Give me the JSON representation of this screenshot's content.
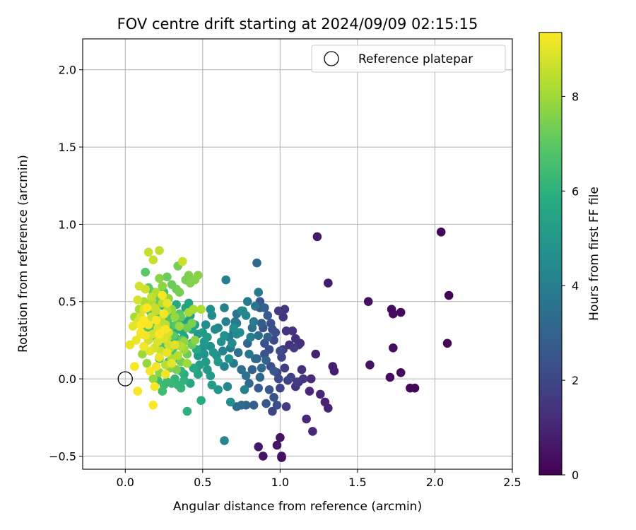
{
  "chart_data": {
    "type": "scatter",
    "title": "FOV centre drift starting at 2024/09/09 02:15:15",
    "xlabel": "Angular distance from reference (arcmin)",
    "ylabel": "Rotation from reference (arcmin)",
    "xlim": [
      -0.275,
      2.5
    ],
    "ylim": [
      -0.585,
      2.2
    ],
    "xticks": [
      0.0,
      0.5,
      1.0,
      1.5,
      2.0,
      2.5
    ],
    "xtick_labels": [
      "0.0",
      "0.5",
      "1.0",
      "1.5",
      "2.0",
      "2.5"
    ],
    "yticks": [
      -0.5,
      0.0,
      0.5,
      1.0,
      1.5,
      2.0
    ],
    "ytick_labels": [
      "−0.5",
      "0.0",
      "0.5",
      "1.0",
      "1.5",
      "2.0"
    ],
    "grid": true,
    "legend": {
      "position": "top-right",
      "entries": [
        "Reference platepar"
      ]
    },
    "colorbar": {
      "label": "Hours from first FF file",
      "colormap": "viridis",
      "range": [
        0,
        9.35
      ],
      "ticks": [
        0,
        2,
        4,
        6,
        8
      ],
      "tick_labels": [
        "0",
        "2",
        "4",
        "6",
        "8"
      ]
    },
    "reference_point": {
      "x": 0.0,
      "y": 0.0,
      "name": "Reference platepar"
    },
    "points": [
      [
        2.04,
        0.95,
        0.1
      ],
      [
        2.09,
        0.54,
        0.1
      ],
      [
        2.08,
        0.23,
        0.1
      ],
      [
        1.87,
        -0.06,
        0.15
      ],
      [
        1.84,
        -0.06,
        0.15
      ],
      [
        1.78,
        0.04,
        0.25
      ],
      [
        1.71,
        0.01,
        0.3
      ],
      [
        1.73,
        0.2,
        0.35
      ],
      [
        1.78,
        0.43,
        0.3
      ],
      [
        1.73,
        0.42,
        0.3
      ],
      [
        1.72,
        0.45,
        0.3
      ],
      [
        1.57,
        0.5,
        0.4
      ],
      [
        1.58,
        0.09,
        0.45
      ],
      [
        1.24,
        0.92,
        0.7
      ],
      [
        1.31,
        0.62,
        0.75
      ],
      [
        1.35,
        0.05,
        0.8
      ],
      [
        1.34,
        0.08,
        0.85
      ],
      [
        1.31,
        -0.19,
        0.9
      ],
      [
        1.23,
        0.16,
        0.9
      ],
      [
        1.29,
        -0.15,
        0.95
      ],
      [
        1.26,
        -0.1,
        1.0
      ],
      [
        1.21,
        -0.34,
        1.05
      ],
      [
        1.19,
        -0.08,
        1.1
      ],
      [
        1.17,
        -0.26,
        1.1
      ],
      [
        1.2,
        0.0,
        1.15
      ],
      [
        1.13,
        0.23,
        1.2
      ],
      [
        1.12,
        -0.02,
        1.25
      ],
      [
        1.14,
        0.06,
        1.3
      ],
      [
        1.1,
        0.26,
        1.3
      ],
      [
        1.1,
        -0.05,
        1.35
      ],
      [
        1.12,
        0.22,
        1.35
      ],
      [
        1.04,
        0.31,
        1.4
      ],
      [
        1.03,
        0.45,
        1.5
      ],
      [
        1.02,
        0.4,
        1.55
      ],
      [
        0.99,
        0.44,
        1.6
      ],
      [
        1.02,
        0.19,
        1.6
      ],
      [
        1.01,
        -0.51,
        0.4
      ],
      [
        1.01,
        -0.5,
        0.45
      ],
      [
        1.0,
        -0.38,
        0.5
      ],
      [
        0.98,
        -0.43,
        0.55
      ],
      [
        0.89,
        -0.5,
        0.5
      ],
      [
        0.86,
        -0.44,
        0.6
      ],
      [
        1.04,
        -0.18,
        1.7
      ],
      [
        1.03,
        0.07,
        1.75
      ],
      [
        1.0,
        -0.06,
        1.9
      ],
      [
        0.98,
        0.04,
        2.0
      ],
      [
        0.95,
        -0.21,
        2.0
      ],
      [
        0.96,
        0.25,
        2.1
      ],
      [
        0.94,
        0.08,
        2.2
      ],
      [
        0.93,
        0.19,
        2.25
      ],
      [
        0.97,
        0.3,
        2.3
      ],
      [
        0.94,
        0.36,
        2.3
      ],
      [
        0.9,
        0.23,
        2.35
      ],
      [
        0.9,
        0.16,
        2.4
      ],
      [
        0.89,
        0.33,
        2.45
      ],
      [
        0.87,
        0.46,
        2.5
      ],
      [
        0.87,
        0.5,
        2.55
      ],
      [
        0.91,
        -0.16,
        2.6
      ],
      [
        0.86,
        -0.06,
        2.7
      ],
      [
        0.83,
        -0.17,
        2.8
      ],
      [
        0.85,
        0.13,
        2.85
      ],
      [
        0.82,
        0.06,
        2.9
      ],
      [
        0.78,
        -0.17,
        3.0
      ],
      [
        0.8,
        -0.03,
        3.1
      ],
      [
        0.79,
        0.23,
        3.15
      ],
      [
        0.75,
        -0.17,
        3.2
      ],
      [
        0.72,
        -0.18,
        3.3
      ],
      [
        0.75,
        0.06,
        3.4
      ],
      [
        0.73,
        0.17,
        3.5
      ],
      [
        0.72,
        0.42,
        3.55
      ],
      [
        0.71,
        0.37,
        3.6
      ],
      [
        0.7,
        0.31,
        3.7
      ],
      [
        0.68,
        0.2,
        3.8
      ],
      [
        0.7,
        0.1,
        3.85
      ],
      [
        0.72,
        0.36,
        3.9
      ],
      [
        0.67,
        0.27,
        4.0
      ],
      [
        0.65,
        0.37,
        4.05
      ],
      [
        0.64,
        0.46,
        4.1
      ],
      [
        0.63,
        0.18,
        4.15
      ],
      [
        0.64,
        0.08,
        4.2
      ],
      [
        0.66,
        -0.05,
        4.3
      ],
      [
        0.6,
        0.33,
        4.35
      ],
      [
        0.58,
        0.32,
        4.4
      ],
      [
        0.56,
        0.41,
        4.5
      ],
      [
        0.55,
        0.45,
        4.55
      ],
      [
        0.52,
        0.35,
        4.6
      ],
      [
        0.55,
        0.21,
        4.7
      ],
      [
        0.59,
        0.15,
        4.75
      ],
      [
        0.51,
        0.16,
        4.8
      ],
      [
        0.5,
        0.2,
        4.85
      ],
      [
        0.47,
        0.15,
        4.9
      ],
      [
        0.47,
        0.29,
        4.95
      ],
      [
        0.51,
        0.24,
        5.0
      ],
      [
        0.53,
        0.06,
        5.05
      ],
      [
        0.55,
        0.02,
        5.1
      ],
      [
        0.56,
        -0.04,
        5.15
      ],
      [
        0.48,
        0.09,
        5.2
      ],
      [
        0.46,
        0.06,
        5.25
      ],
      [
        0.43,
        0.23,
        5.3
      ],
      [
        0.42,
        0.41,
        5.35
      ],
      [
        0.4,
        0.37,
        5.4
      ],
      [
        0.41,
        0.49,
        5.45
      ],
      [
        0.38,
        0.27,
        5.5
      ],
      [
        0.37,
        0.31,
        5.55
      ],
      [
        0.35,
        0.37,
        5.6
      ],
      [
        0.33,
        0.48,
        5.65
      ],
      [
        0.32,
        0.31,
        5.7
      ],
      [
        0.3,
        0.25,
        5.75
      ],
      [
        0.28,
        0.42,
        5.8
      ],
      [
        0.27,
        0.34,
        5.85
      ],
      [
        0.26,
        0.3,
        5.9
      ],
      [
        0.25,
        0.47,
        5.95
      ],
      [
        0.24,
        0.52,
        6.0
      ],
      [
        0.38,
        -0.01,
        6.05
      ],
      [
        0.36,
        0.05,
        6.1
      ],
      [
        0.34,
        -0.04,
        6.15
      ],
      [
        0.32,
        0.0,
        6.2
      ],
      [
        0.3,
        -0.03,
        6.25
      ],
      [
        0.27,
        -0.02,
        6.3
      ],
      [
        0.25,
        -0.04,
        6.35
      ],
      [
        0.21,
        -0.01,
        6.4
      ],
      [
        0.24,
        -0.08,
        6.45
      ],
      [
        0.28,
        0.11,
        6.5
      ],
      [
        0.3,
        0.18,
        6.55
      ],
      [
        0.22,
        0.13,
        6.6
      ],
      [
        0.23,
        0.21,
        6.65
      ],
      [
        0.2,
        0.27,
        6.7
      ],
      [
        0.18,
        0.33,
        6.75
      ],
      [
        0.17,
        0.42,
        6.8
      ],
      [
        0.16,
        0.44,
        6.85
      ],
      [
        0.14,
        0.33,
        6.9
      ],
      [
        0.13,
        0.69,
        6.95
      ],
      [
        0.15,
        0.59,
        7.0
      ],
      [
        0.18,
        0.56,
        7.05
      ],
      [
        0.21,
        0.48,
        7.1
      ],
      [
        0.22,
        0.53,
        7.15
      ],
      [
        0.27,
        0.66,
        7.2
      ],
      [
        0.3,
        0.61,
        7.25
      ],
      [
        0.33,
        0.58,
        7.3
      ],
      [
        0.35,
        0.56,
        7.35
      ],
      [
        0.34,
        0.73,
        7.4
      ],
      [
        0.39,
        0.64,
        7.45
      ],
      [
        0.41,
        0.67,
        7.5
      ],
      [
        0.42,
        0.62,
        7.55
      ],
      [
        0.45,
        0.64,
        7.6
      ],
      [
        0.47,
        0.67,
        7.65
      ],
      [
        0.22,
        0.65,
        7.7
      ],
      [
        0.24,
        0.6,
        7.75
      ],
      [
        0.28,
        0.52,
        7.8
      ],
      [
        0.3,
        0.45,
        7.85
      ],
      [
        0.32,
        0.4,
        7.9
      ],
      [
        0.35,
        0.34,
        7.95
      ],
      [
        0.38,
        0.19,
        8.0
      ],
      [
        0.4,
        0.1,
        8.05
      ],
      [
        0.41,
        0.43,
        8.1
      ],
      [
        0.44,
        0.45,
        8.15
      ],
      [
        0.49,
        0.45,
        8.2
      ],
      [
        0.36,
        0.21,
        8.25
      ],
      [
        0.34,
        0.15,
        8.3
      ],
      [
        0.29,
        0.2,
        8.35
      ],
      [
        0.27,
        0.26,
        8.4
      ],
      [
        0.24,
        0.36,
        8.45
      ],
      [
        0.22,
        0.83,
        8.5
      ],
      [
        0.15,
        0.82,
        8.55
      ],
      [
        0.18,
        0.77,
        8.6
      ],
      [
        0.37,
        0.76,
        8.65
      ],
      [
        0.13,
        0.58,
        8.7
      ],
      [
        0.09,
        0.6,
        8.75
      ],
      [
        0.08,
        0.51,
        8.8
      ],
      [
        0.08,
        0.37,
        8.85
      ],
      [
        0.1,
        0.4,
        8.9
      ],
      [
        0.12,
        0.45,
        8.95
      ],
      [
        0.05,
        0.34,
        9.0
      ],
      [
        0.03,
        0.22,
        9.05
      ],
      [
        0.07,
        0.25,
        9.1
      ],
      [
        0.1,
        0.29,
        9.15
      ],
      [
        0.12,
        0.21,
        9.2
      ],
      [
        0.08,
        -0.08,
        9.25
      ],
      [
        0.06,
        0.08,
        9.3
      ],
      [
        0.18,
        -0.17,
        9.35
      ],
      [
        0.19,
        -0.05,
        9.3
      ],
      [
        0.16,
        0.05,
        9.25
      ],
      [
        0.2,
        0.08,
        9.2
      ],
      [
        0.26,
        0.03,
        9.15
      ],
      [
        0.22,
        0.14,
        9.1
      ],
      [
        0.27,
        0.17,
        9.05
      ],
      [
        0.3,
        0.1,
        9.0
      ],
      [
        0.32,
        0.22,
        8.95
      ],
      [
        0.25,
        0.26,
        8.9
      ],
      [
        0.28,
        0.3,
        8.85
      ],
      [
        0.21,
        0.33,
        8.8
      ],
      [
        0.18,
        0.29,
        8.75
      ],
      [
        0.15,
        0.25,
        8.7
      ],
      [
        0.14,
        0.36,
        8.65
      ],
      [
        0.17,
        0.4,
        8.6
      ],
      [
        0.2,
        0.44,
        8.55
      ],
      [
        0.23,
        0.38,
        8.5
      ],
      [
        0.26,
        0.35,
        8.45
      ],
      [
        0.24,
        0.49,
        8.4
      ],
      [
        0.27,
        0.44,
        8.35
      ],
      [
        0.2,
        0.56,
        8.3
      ],
      [
        0.17,
        0.5,
        8.25
      ],
      [
        0.12,
        0.5,
        8.2
      ],
      [
        0.09,
        0.45,
        8.15
      ],
      [
        0.06,
        0.4,
        8.1
      ],
      [
        0.11,
        0.16,
        8.0
      ],
      [
        0.14,
        0.1,
        7.9
      ],
      [
        0.18,
        0.0,
        7.85
      ],
      [
        0.22,
        0.04,
        7.75
      ],
      [
        0.29,
        0.07,
        7.6
      ],
      [
        0.33,
        0.06,
        7.5
      ],
      [
        0.36,
        0.11,
        7.4
      ],
      [
        0.4,
        0.16,
        7.3
      ],
      [
        0.43,
        0.22,
        7.2
      ],
      [
        0.37,
        0.25,
        7.1
      ],
      [
        0.31,
        0.28,
        7.0
      ],
      [
        0.35,
        0.42,
        6.9
      ],
      [
        0.28,
        0.39,
        6.8
      ],
      [
        0.22,
        0.41,
        6.7
      ],
      [
        0.25,
        0.56,
        6.6
      ],
      [
        0.3,
        0.34,
        6.5
      ],
      [
        0.33,
        0.26,
        6.4
      ],
      [
        0.26,
        0.21,
        6.3
      ],
      [
        0.36,
        -0.06,
        6.2
      ],
      [
        0.4,
        -0.21,
        6.0
      ],
      [
        0.49,
        -0.14,
        5.8
      ],
      [
        0.44,
        0.07,
        5.7
      ],
      [
        0.46,
        0.19,
        5.6
      ],
      [
        0.43,
        0.32,
        5.5
      ],
      [
        0.39,
        0.46,
        5.4
      ],
      [
        0.45,
        0.35,
        5.3
      ],
      [
        0.5,
        0.3,
        5.2
      ],
      [
        0.53,
        0.27,
        5.1
      ],
      [
        0.6,
        0.11,
        5.0
      ],
      [
        0.6,
        -0.07,
        4.9
      ],
      [
        0.64,
        0.28,
        4.8
      ],
      [
        0.67,
        0.13,
        4.7
      ],
      [
        0.7,
        0.33,
        4.6
      ],
      [
        0.74,
        0.3,
        4.5
      ],
      [
        0.76,
        0.44,
        4.4
      ],
      [
        0.78,
        0.41,
        4.3
      ],
      [
        0.68,
        -0.15,
        4.6
      ],
      [
        0.65,
        0.64,
        4.0
      ],
      [
        0.64,
        -0.4,
        4.3
      ],
      [
        0.77,
        -0.07,
        4.1
      ],
      [
        0.81,
        0.27,
        4.0
      ],
      [
        0.83,
        0.37,
        3.9
      ],
      [
        0.86,
        0.56,
        3.8
      ],
      [
        0.85,
        0.75,
        3.3
      ],
      [
        0.8,
        0.16,
        3.7
      ],
      [
        0.78,
        0.02,
        3.6
      ],
      [
        0.82,
        0.33,
        3.5
      ],
      [
        0.86,
        0.28,
        3.4
      ],
      [
        0.88,
        0.07,
        3.3
      ],
      [
        0.84,
        0.13,
        3.2
      ],
      [
        0.87,
        0.01,
        3.1
      ],
      [
        0.91,
        0.12,
        3.0
      ],
      [
        0.92,
        0.27,
        2.9
      ],
      [
        0.88,
        0.36,
        2.8
      ],
      [
        0.92,
        0.41,
        2.7
      ],
      [
        0.96,
        0.05,
        2.6
      ],
      [
        0.93,
        -0.07,
        2.5
      ],
      [
        0.96,
        -0.12,
        2.4
      ],
      [
        0.98,
        -0.17,
        2.3
      ],
      [
        1.0,
        0.18,
        2.2
      ],
      [
        0.99,
        0.0,
        2.1
      ],
      [
        1.01,
        0.14,
        2.0
      ],
      [
        1.05,
        -0.01,
        1.9
      ],
      [
        1.07,
        0.01,
        1.8
      ],
      [
        1.09,
        0.2,
        1.7
      ],
      [
        1.11,
        -0.02,
        1.6
      ],
      [
        1.15,
        0.0,
        1.5
      ],
      [
        1.08,
        0.31,
        1.4
      ],
      [
        1.06,
        0.22,
        1.3
      ],
      [
        0.95,
        0.32,
        2.3
      ],
      [
        0.9,
        0.46,
        2.9
      ],
      [
        0.84,
        0.47,
        3.6
      ],
      [
        0.79,
        0.5,
        3.9
      ],
      [
        0.75,
        0.44,
        4.2
      ],
      [
        0.72,
        0.29,
        4.4
      ],
      [
        0.69,
        0.23,
        4.5
      ],
      [
        0.62,
        0.24,
        4.7
      ],
      [
        0.57,
        0.17,
        4.9
      ],
      [
        0.52,
        0.11,
        5.1
      ],
      [
        0.47,
        0.03,
        5.4
      ],
      [
        0.42,
        -0.03,
        5.6
      ],
      [
        0.38,
        0.03,
        5.8
      ],
      [
        0.34,
        0.13,
        6.2
      ],
      [
        0.31,
        0.2,
        6.4
      ],
      [
        0.29,
        0.29,
        6.7
      ],
      [
        0.33,
        0.35,
        6.9
      ],
      [
        0.36,
        0.4,
        7.1
      ],
      [
        0.4,
        0.33,
        7.3
      ],
      [
        0.43,
        0.36,
        7.5
      ],
      [
        0.45,
        0.25,
        7.7
      ],
      [
        0.38,
        0.24,
        7.8
      ],
      [
        0.34,
        0.22,
        8.0
      ],
      [
        0.3,
        0.13,
        8.2
      ],
      [
        0.26,
        0.09,
        8.4
      ],
      [
        0.23,
        0.18,
        8.6
      ],
      [
        0.19,
        0.2,
        8.8
      ],
      [
        0.16,
        0.18,
        9.0
      ],
      [
        0.13,
        0.28,
        9.2
      ],
      [
        0.1,
        0.3,
        9.3
      ],
      [
        0.12,
        0.38,
        9.35
      ],
      [
        0.15,
        0.35,
        9.3
      ],
      [
        0.2,
        0.38,
        9.25
      ],
      [
        0.25,
        0.42,
        9.2
      ],
      [
        0.27,
        0.49,
        9.1
      ],
      [
        0.23,
        0.31,
        9.0
      ],
      [
        0.21,
        0.24,
        8.9
      ],
      [
        0.26,
        0.28,
        8.8
      ],
      [
        0.28,
        0.22,
        8.7
      ],
      [
        0.19,
        0.46,
        8.6
      ],
      [
        0.17,
        0.53,
        8.5
      ],
      [
        0.24,
        0.54,
        9.3
      ],
      [
        0.14,
        0.46,
        9.35
      ],
      [
        0.1,
        0.35,
        9.35
      ],
      [
        0.22,
        0.29,
        9.35
      ],
      [
        0.26,
        0.32,
        9.3
      ]
    ]
  }
}
